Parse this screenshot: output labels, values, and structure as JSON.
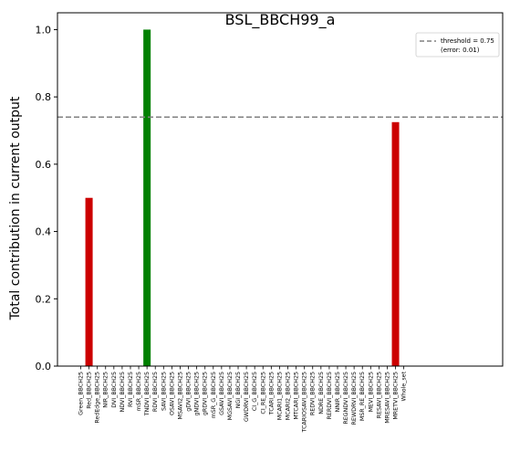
{
  "chart_data": {
    "type": "bar",
    "title": "BSL_BBCH99_a",
    "xlabel": "",
    "ylabel": "Total contribution in current output",
    "ylim": [
      0,
      1.05
    ],
    "yticks": [
      0.0,
      0.2,
      0.4,
      0.6,
      0.8,
      1.0
    ],
    "ytick_labels": [
      "0.0",
      "0.2",
      "0.4",
      "0.6",
      "0.8",
      "1.0"
    ],
    "grid": false,
    "categories": [
      "Green_BBCH25",
      "Red_BBCH25",
      "RedEdge_BBCH25",
      "NIR_BBCH25",
      "DVI_BBCH25",
      "NDVI_BBCH25",
      "RVI_BBCH25",
      "mSR_BBCH25",
      "TNDVI_BBCH25",
      "RDVI_BBCH25",
      "SAVI_BBCH25",
      "OSAVI_BBCH25",
      "MSAVI2_BBCH25",
      "gDVI_BBCH25",
      "gNDVI_BBCH25",
      "gRDVI_BBCH25",
      "mSR_G_BBCH25",
      "GSAVI_BBCH25",
      "MGSAVI_BBCH25",
      "NGI_BBCH25",
      "GWDRVI_BBCH25",
      "CI_G_BBCH25",
      "CI_RE_BBCH25",
      "TCARI_BBCH25",
      "MCARI1_BBCH25",
      "MCARI2_BBCH25",
      "MTCARI_BBCH25",
      "TCARIOSAVI_BBCH25",
      "REDVI_BBCH25",
      "NDRE_BBCH25",
      "RERDVI_BBCH25",
      "NNIR_BBCH25",
      "REGNDVI_BBCH25",
      "REWDRVI_BBCH25",
      "MSR_RE_BBCH25",
      "MEVI_BBCH25",
      "RESAVI_BBCH25",
      "MRESAVI_BBCH25",
      "MRETVI_BBCH25",
      "Whole_set"
    ],
    "values": [
      0,
      0.5,
      0,
      0,
      0,
      0,
      0,
      0,
      1.0,
      0,
      0,
      0,
      0,
      0,
      0,
      0,
      0,
      0,
      0,
      0,
      0,
      0,
      0,
      0,
      0,
      0,
      0,
      0,
      0,
      0,
      0,
      0,
      0,
      0,
      0,
      0,
      0,
      0,
      0.725,
      0
    ],
    "bar_colors": {
      "above_threshold": "#008000",
      "below_threshold": "#cc0000"
    },
    "threshold": {
      "value": 0.74,
      "color": "#808080",
      "style": "dashed"
    },
    "legend": {
      "placement": "top-right",
      "lines": [
        "threshold = 0.75",
        "(error: 0.01)"
      ]
    }
  }
}
